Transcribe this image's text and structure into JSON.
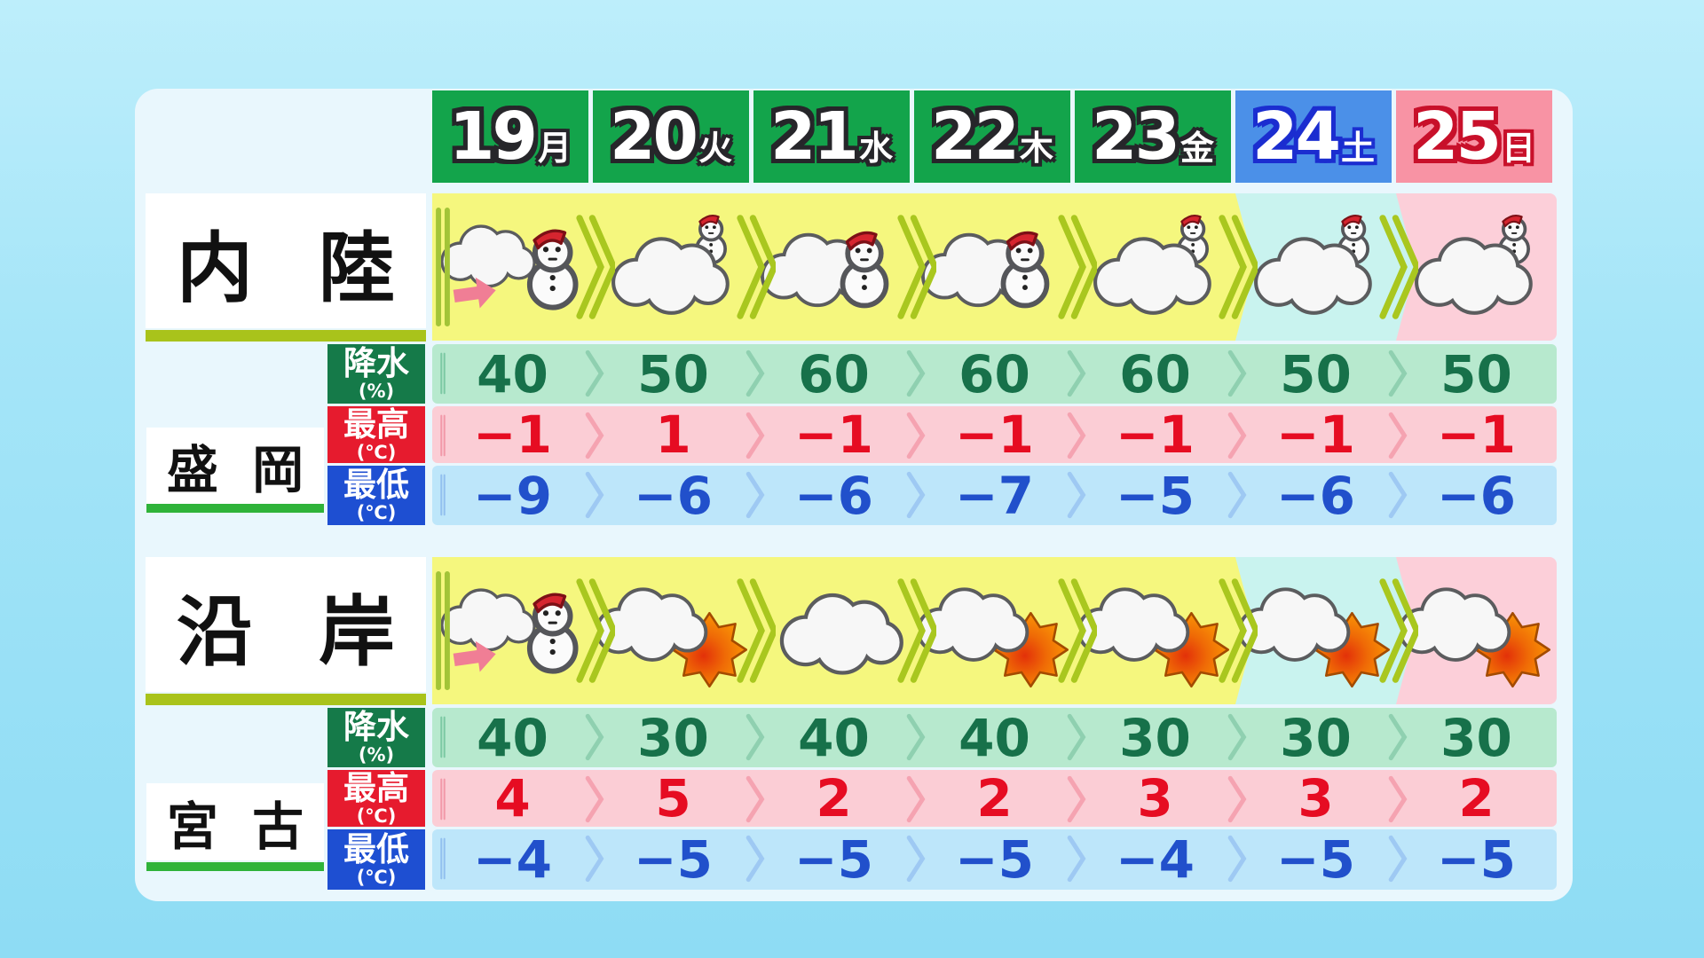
{
  "days": [
    {
      "num": "19",
      "wd": "月",
      "type": "weekday"
    },
    {
      "num": "20",
      "wd": "火",
      "type": "weekday"
    },
    {
      "num": "21",
      "wd": "水",
      "type": "weekday"
    },
    {
      "num": "22",
      "wd": "木",
      "type": "weekday"
    },
    {
      "num": "23",
      "wd": "金",
      "type": "weekday"
    },
    {
      "num": "24",
      "wd": "土",
      "type": "saturday"
    },
    {
      "num": "25",
      "wd": "日",
      "type": "sunday"
    }
  ],
  "row_labels": {
    "precip": "降水",
    "precip_unit": "(%)",
    "high": "最高",
    "high_unit": "(℃)",
    "low": "最低",
    "low_unit": "(℃)"
  },
  "regions": [
    {
      "name": "内 陸",
      "city": "盛 岡",
      "icons": [
        "cloud-then-snow",
        "cloud-snow-small",
        "cloud-snow",
        "cloud-snow",
        "cloud-snow-small",
        "cloud-snow-small",
        "cloud-snow-small"
      ],
      "precip": [
        "40",
        "50",
        "60",
        "60",
        "60",
        "50",
        "50"
      ],
      "high": [
        "−1",
        "1",
        "−1",
        "−1",
        "−1",
        "−1",
        "−1"
      ],
      "low": [
        "−9",
        "−6",
        "−6",
        "−7",
        "−5",
        "−6",
        "−6"
      ]
    },
    {
      "name": "沿 岸",
      "city": "宮 古",
      "icons": [
        "cloud-then-snow",
        "cloud-sun",
        "cloud",
        "cloud-sun",
        "cloud-sun",
        "cloud-sun",
        "cloud-sun"
      ],
      "precip": [
        "40",
        "30",
        "40",
        "40",
        "30",
        "30",
        "30"
      ],
      "high": [
        "4",
        "5",
        "2",
        "2",
        "3",
        "3",
        "2"
      ],
      "low": [
        "−4",
        "−5",
        "−5",
        "−5",
        "−4",
        "−5",
        "−5"
      ]
    }
  ],
  "colors": {
    "weekday_header": "#13a44b",
    "saturday_header": "#4b90e8",
    "sunday_header": "#f893a4",
    "icon_row_weekday": "#f5f77e",
    "icon_row_saturday": "#c9f3ef",
    "icon_row_sunday": "#fccfd9",
    "precip_row": "#b7e9ce",
    "high_row": "#fbcdd5",
    "low_row": "#bde6fa",
    "precip_label": "#157a49",
    "high_label": "#e61b2e",
    "low_label": "#1e4fd2",
    "region_underline": "#a9c31b",
    "city_underline": "#2fb33a",
    "background_sky": "#a5e5f8"
  },
  "chart_data": {
    "type": "table",
    "columns": [
      "19月",
      "20火",
      "21水",
      "22木",
      "23金",
      "24土",
      "25日"
    ],
    "tables": [
      {
        "region": "内陸",
        "city": "盛岡",
        "weather_icons": [
          "cloud-then-snow",
          "cloud-snow-small",
          "cloud-snow",
          "cloud-snow",
          "cloud-snow-small",
          "cloud-snow-small",
          "cloud-snow-small"
        ],
        "precip_percent": [
          40,
          50,
          60,
          60,
          60,
          50,
          50
        ],
        "high_c": [
          -1,
          1,
          -1,
          -1,
          -1,
          -1,
          -1
        ],
        "low_c": [
          -9,
          -6,
          -6,
          -7,
          -5,
          -6,
          -6
        ]
      },
      {
        "region": "沿岸",
        "city": "宮古",
        "weather_icons": [
          "cloud-then-snow",
          "cloud-sun",
          "cloud",
          "cloud-sun",
          "cloud-sun",
          "cloud-sun",
          "cloud-sun"
        ],
        "precip_percent": [
          40,
          30,
          40,
          40,
          30,
          30,
          30
        ],
        "high_c": [
          4,
          5,
          2,
          2,
          3,
          3,
          2
        ],
        "low_c": [
          -4,
          -5,
          -5,
          -5,
          -4,
          -5,
          -5
        ]
      }
    ]
  }
}
